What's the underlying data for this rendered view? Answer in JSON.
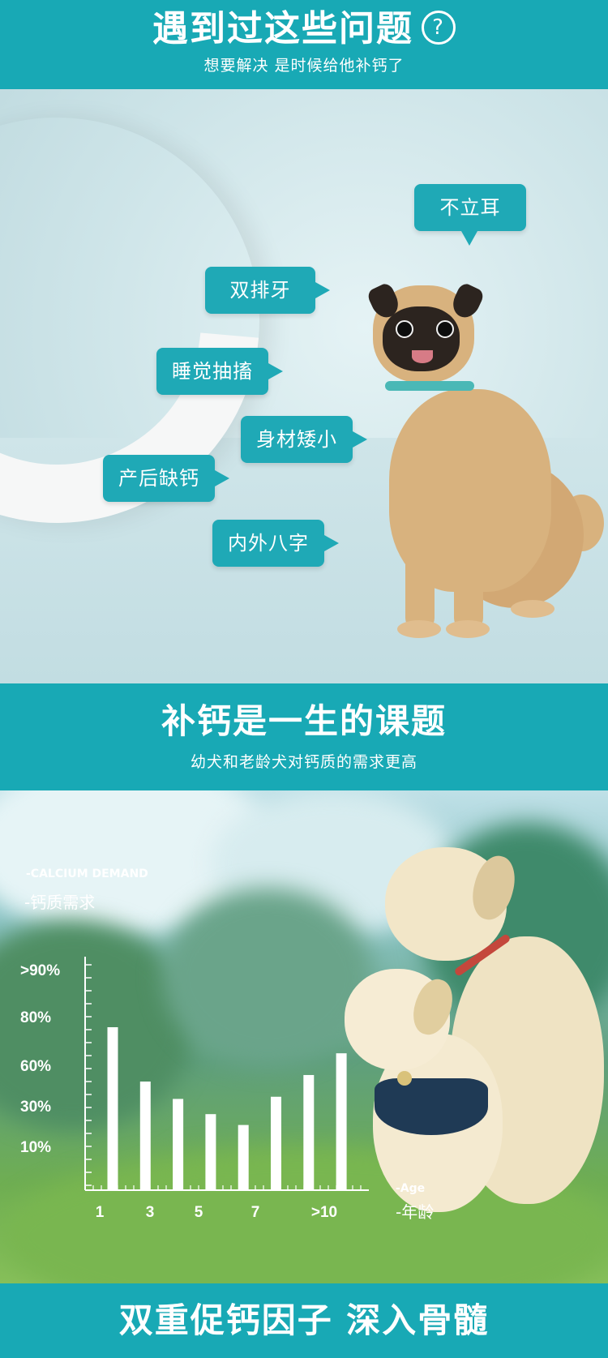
{
  "section1": {
    "title": "遇到过这些问题",
    "question_mark": "?",
    "subtitle": "想要解决 是时候给他补钙了",
    "bubbles": [
      "不立耳",
      "双排牙",
      "睡觉抽搐",
      "身材矮小",
      "产后缺钙",
      "内外八字"
    ]
  },
  "section2": {
    "title": "补钙是一生的课题",
    "subtitle": "幼犬和老龄犬对钙质的需求更高"
  },
  "section3": {
    "title": "双重促钙因子 深入骨髓"
  },
  "colors": {
    "brand": "#18a9b5",
    "bubble": "#1fa9b6",
    "bar": "#ffffff"
  },
  "chart_data": {
    "type": "bar",
    "y_axis_label_en": "-CALCIUM DEMAND",
    "y_axis_label_cn": "-钙质需求",
    "x_axis_label_en": "-Age",
    "x_axis_label_cn": "-年龄",
    "y_tick_labels": [
      ">90%",
      "80%",
      "60%",
      "30%",
      "10%"
    ],
    "x_tick_labels": [
      "1",
      "3",
      "5",
      "7",
      ">10"
    ],
    "values": [
      75,
      50,
      42,
      35,
      30,
      43,
      53,
      63
    ],
    "ylim": [
      0,
      100
    ],
    "grid": false
  }
}
